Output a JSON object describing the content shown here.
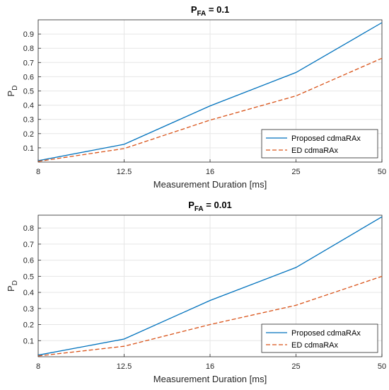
{
  "chart_data": [
    {
      "type": "line",
      "title": {
        "base": "P",
        "sub": "FA",
        "rest": " = 0.1"
      },
      "xlabel": "Measurement Duration [ms]",
      "ylabel": {
        "base": "P",
        "sub": "D"
      },
      "categories": [
        "8",
        "12.5",
        "16",
        "25",
        "50"
      ],
      "yticks": [
        "0.1",
        "0.2",
        "0.3",
        "0.4",
        "0.5",
        "0.6",
        "0.7",
        "0.8",
        "0.9"
      ],
      "ylim": [
        0,
        1
      ],
      "grid": true,
      "legend_position": "bottom-right",
      "series": [
        {
          "name": "Proposed cdmaRAx",
          "color": "#0072BD",
          "dash": "solid",
          "values": [
            0.01,
            0.125,
            0.395,
            0.63,
            0.98
          ]
        },
        {
          "name": "ED cdmaRAx",
          "color": "#D95319",
          "dash": "dashed",
          "values": [
            0.005,
            0.095,
            0.295,
            0.465,
            0.73
          ]
        }
      ]
    },
    {
      "type": "line",
      "title": {
        "base": "P",
        "sub": "FA",
        "rest": " = 0.01"
      },
      "xlabel": "Measurement Duration [ms]",
      "ylabel": {
        "base": "P",
        "sub": "D"
      },
      "categories": [
        "8",
        "12.5",
        "16",
        "25",
        "50"
      ],
      "yticks": [
        "0.1",
        "0.2",
        "0.3",
        "0.4",
        "0.5",
        "0.6",
        "0.7",
        "0.8"
      ],
      "ylim": [
        0,
        0.88
      ],
      "grid": true,
      "legend_position": "bottom-right",
      "series": [
        {
          "name": "Proposed cdmaRAx",
          "color": "#0072BD",
          "dash": "solid",
          "values": [
            0.01,
            0.11,
            0.35,
            0.555,
            0.87
          ]
        },
        {
          "name": "ED cdmaRAx",
          "color": "#D95319",
          "dash": "dashed",
          "values": [
            0.005,
            0.065,
            0.2,
            0.32,
            0.5
          ]
        }
      ]
    }
  ]
}
